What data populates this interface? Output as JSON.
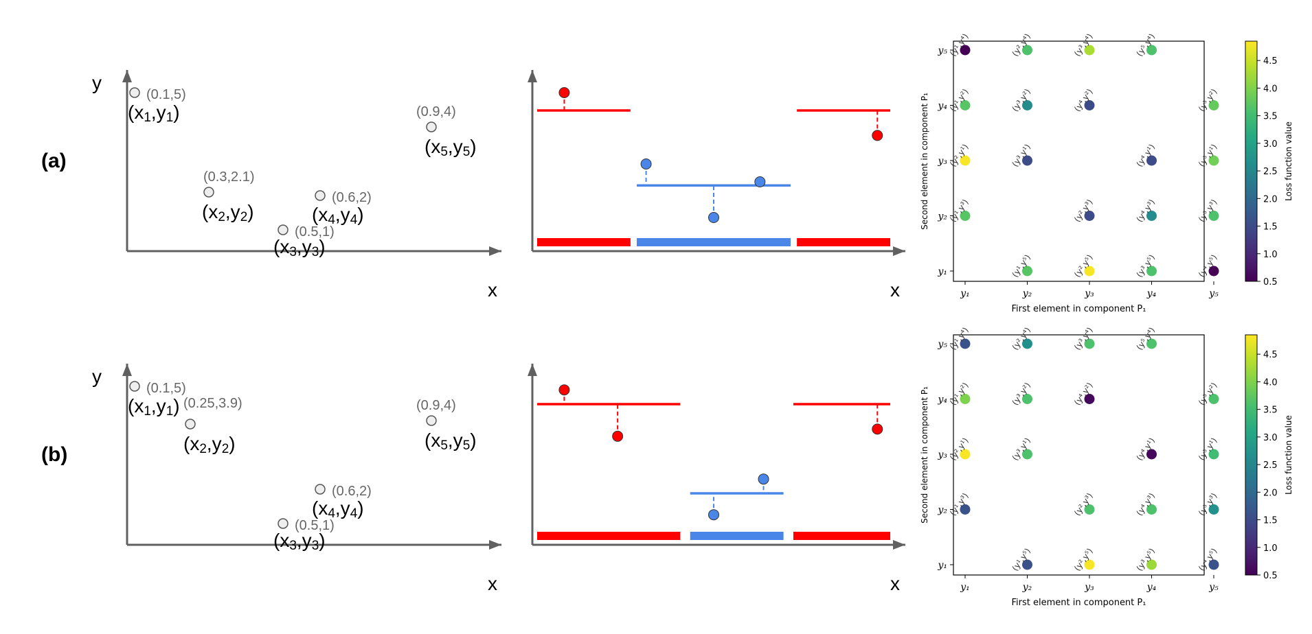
{
  "panels": [
    {
      "label": "(a)",
      "scatter": {
        "axis_x": "x",
        "axis_y": "y",
        "points": [
          {
            "coord": "(0.1,5)",
            "name": "x1y1",
            "x": 0.1,
            "y": 5
          },
          {
            "coord": "(0.3,2.1)",
            "name": "x2y2",
            "x": 0.3,
            "y": 2.1
          },
          {
            "coord": "(0.5,1)",
            "name": "x3y3",
            "x": 0.5,
            "y": 1
          },
          {
            "coord": "(0.6,2)",
            "name": "x4y4",
            "x": 0.6,
            "y": 2
          },
          {
            "coord": "(0.9,4)",
            "name": "x5y5",
            "x": 0.9,
            "y": 4
          }
        ]
      },
      "fit": {
        "axis_x": "x",
        "segments": [
          {
            "color": "#ff0000",
            "x0": 0.0,
            "x1": 0.27,
            "level": 4.0
          },
          {
            "color": "#4a86e8",
            "x0": 0.28,
            "x1": 0.72,
            "level": 1.9
          },
          {
            "color": "#ff0000",
            "x0": 0.73,
            "x1": 1.0,
            "level": 4.0
          }
        ],
        "points": [
          {
            "x": 0.08,
            "y": 4.5,
            "color": "#ff0000"
          },
          {
            "x": 0.31,
            "y": 2.5,
            "color": "#4a86e8"
          },
          {
            "x": 0.5,
            "y": 1.0,
            "color": "#4a86e8"
          },
          {
            "x": 0.63,
            "y": 2.0,
            "color": "#4a86e8"
          },
          {
            "x": 0.96,
            "y": 3.3,
            "color": "#ff0000"
          }
        ]
      },
      "heatmap": {
        "xlabel": "First element in component P₁",
        "ylabel": "Second element in component P₁",
        "colorbar_label": "Loss function value",
        "colorbar_ticks": [
          "0.5",
          "1.0",
          "1.5",
          "2.0",
          "2.5",
          "3.0",
          "3.5",
          "4.0",
          "4.5"
        ],
        "x_ticks": [
          "y₁",
          "y₂",
          "y₃",
          "y₄",
          "y₅"
        ],
        "y_ticks": [
          "y₁",
          "y₂",
          "y₃",
          "y₄",
          "y₅"
        ],
        "vmin": 0.5,
        "vmax": 4.85,
        "cells": [
          {
            "c": 0,
            "r": 4,
            "v": 0.5,
            "t": "(y¹,y⁴)"
          },
          {
            "c": 1,
            "r": 4,
            "v": 3.6,
            "t": "(y²,y⁴)"
          },
          {
            "c": 2,
            "r": 4,
            "v": 4.3,
            "t": "(y³,y⁴)"
          },
          {
            "c": 3,
            "r": 4,
            "v": 3.6,
            "t": "(y⁵,y⁴)"
          },
          {
            "c": 0,
            "r": 3,
            "v": 3.7,
            "t": "(y¹,y²)"
          },
          {
            "c": 1,
            "r": 3,
            "v": 2.6,
            "t": "(y³,y²)"
          },
          {
            "c": 2,
            "r": 3,
            "v": 1.5,
            "t": "(y⁴,y²)"
          },
          {
            "c": 4,
            "r": 3,
            "v": 3.8,
            "t": "(y⁵,y²)"
          },
          {
            "c": 0,
            "r": 2,
            "v": 4.8,
            "t": "(y²,y¹)"
          },
          {
            "c": 1,
            "r": 2,
            "v": 1.5,
            "t": "(y³,y¹)"
          },
          {
            "c": 3,
            "r": 2,
            "v": 1.5,
            "t": "(y⁴,y¹)"
          },
          {
            "c": 4,
            "r": 2,
            "v": 3.9,
            "t": "(y⁵,y¹)"
          },
          {
            "c": 0,
            "r": 1,
            "v": 3.7,
            "t": "(y¹,y³)"
          },
          {
            "c": 2,
            "r": 1,
            "v": 1.5,
            "t": "(y²,y³)"
          },
          {
            "c": 3,
            "r": 1,
            "v": 2.6,
            "t": "(y⁴,y³)"
          },
          {
            "c": 4,
            "r": 1,
            "v": 3.6,
            "t": "(y⁵,y³)"
          },
          {
            "c": 1,
            "r": 0,
            "v": 3.7,
            "t": "(y¹,y⁵)"
          },
          {
            "c": 2,
            "r": 0,
            "v": 4.8,
            "t": "(y²,y⁵)"
          },
          {
            "c": 3,
            "r": 0,
            "v": 3.6,
            "t": "(y³,y⁵)"
          },
          {
            "c": 4,
            "r": 0,
            "v": 0.5,
            "t": "(y⁴,y⁵)"
          }
        ]
      }
    },
    {
      "label": "(b)",
      "scatter": {
        "axis_x": "x",
        "axis_y": "y",
        "points": [
          {
            "coord": "(0.1,5)",
            "name": "x1y1",
            "x": 0.1,
            "y": 5
          },
          {
            "coord": "(0.25,3.9)",
            "name": "x2y2",
            "x": 0.25,
            "y": 3.9
          },
          {
            "coord": "(0.5,1)",
            "name": "x3y3",
            "x": 0.5,
            "y": 1
          },
          {
            "coord": "(0.6,2)",
            "name": "x4y4",
            "x": 0.6,
            "y": 2
          },
          {
            "coord": "(0.9,4)",
            "name": "x5y5",
            "x": 0.9,
            "y": 4
          }
        ]
      },
      "fit": {
        "axis_x": "x",
        "segments": [
          {
            "color": "#ff0000",
            "x0": 0.0,
            "x1": 0.41,
            "level": 4.0
          },
          {
            "color": "#4a86e8",
            "x0": 0.43,
            "x1": 0.7,
            "level": 1.5
          },
          {
            "color": "#ff0000",
            "x0": 0.72,
            "x1": 1.0,
            "level": 4.0
          }
        ],
        "points": [
          {
            "x": 0.08,
            "y": 4.4,
            "color": "#ff0000"
          },
          {
            "x": 0.23,
            "y": 3.1,
            "color": "#ff0000"
          },
          {
            "x": 0.5,
            "y": 0.9,
            "color": "#4a86e8"
          },
          {
            "x": 0.64,
            "y": 1.9,
            "color": "#4a86e8"
          },
          {
            "x": 0.96,
            "y": 3.3,
            "color": "#ff0000"
          }
        ]
      },
      "heatmap": {
        "xlabel": "First element in component P₁",
        "ylabel": "Second element in component P₁",
        "colorbar_label": "Loss function value",
        "colorbar_ticks": [
          "0.5",
          "1.0",
          "1.5",
          "2.0",
          "2.5",
          "3.0",
          "3.5",
          "4.0",
          "4.5"
        ],
        "x_ticks": [
          "y₁",
          "y₂",
          "y₃",
          "y₄",
          "y₅"
        ],
        "y_ticks": [
          "y₁",
          "y₂",
          "y₃",
          "y₄",
          "y₅"
        ],
        "vmin": 0.5,
        "vmax": 4.85,
        "cells": [
          {
            "c": 0,
            "r": 4,
            "v": 1.6,
            "t": "(y¹,y⁴)"
          },
          {
            "c": 1,
            "r": 4,
            "v": 2.7,
            "t": "(y²,y⁴)"
          },
          {
            "c": 2,
            "r": 4,
            "v": 3.6,
            "t": "(y³,y⁴)"
          },
          {
            "c": 3,
            "r": 4,
            "v": 3.6,
            "t": "(y⁵,y⁴)"
          },
          {
            "c": 0,
            "r": 3,
            "v": 4.0,
            "t": "(y¹,y²)"
          },
          {
            "c": 1,
            "r": 3,
            "v": 3.6,
            "t": "(y³,y²)"
          },
          {
            "c": 2,
            "r": 3,
            "v": 0.6,
            "t": "(y⁴,y²)"
          },
          {
            "c": 4,
            "r": 3,
            "v": 3.6,
            "t": "(y⁵,y²)"
          },
          {
            "c": 0,
            "r": 2,
            "v": 4.8,
            "t": "(y²,y¹)"
          },
          {
            "c": 1,
            "r": 2,
            "v": 3.6,
            "t": "(y³,y¹)"
          },
          {
            "c": 3,
            "r": 2,
            "v": 0.6,
            "t": "(y⁴,y¹)"
          },
          {
            "c": 4,
            "r": 2,
            "v": 3.5,
            "t": "(y⁵,y¹)"
          },
          {
            "c": 0,
            "r": 1,
            "v": 1.6,
            "t": "(y¹,y³)"
          },
          {
            "c": 2,
            "r": 1,
            "v": 3.6,
            "t": "(y²,y³)"
          },
          {
            "c": 3,
            "r": 1,
            "v": 3.6,
            "t": "(y⁴,y³)"
          },
          {
            "c": 4,
            "r": 1,
            "v": 2.7,
            "t": "(y⁵,y³)"
          },
          {
            "c": 1,
            "r": 0,
            "v": 1.6,
            "t": "(y¹,y⁵)"
          },
          {
            "c": 2,
            "r": 0,
            "v": 4.8,
            "t": "(y²,y⁵)"
          },
          {
            "c": 3,
            "r": 0,
            "v": 4.2,
            "t": "(y³,y⁵)"
          },
          {
            "c": 4,
            "r": 0,
            "v": 1.6,
            "t": "(y⁴,y⁵)"
          }
        ]
      }
    }
  ]
}
